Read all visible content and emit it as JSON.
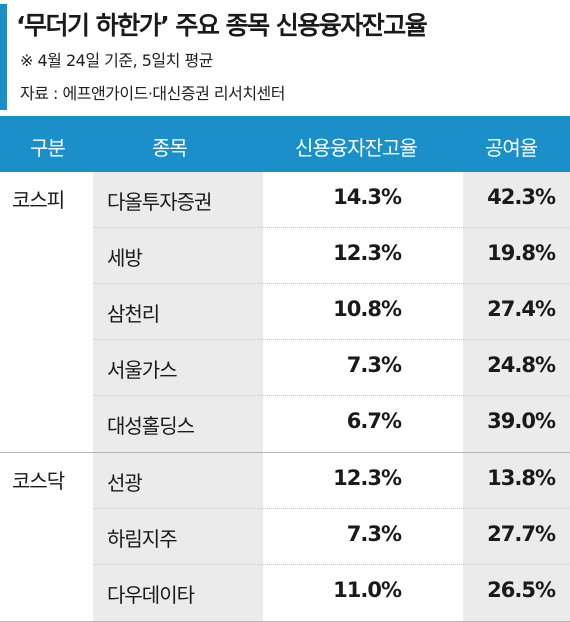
{
  "colors": {
    "accent": "#1a8fc9",
    "header_bg": "#1a8fc9",
    "shade": "#ebebeb",
    "text": "#1a1a1a"
  },
  "title": "‘무더기 하한가’ 주요 종목 신용융자잔고율",
  "note_basis": "※ 4월 24일 기준, 5일치 평균",
  "note_source": "자료 : 에프앤가이드·대신증권 리서치센터",
  "chart_data": {
    "type": "table",
    "columns": [
      "구분",
      "종목",
      "신용융자잔고율",
      "공여율"
    ],
    "groups": [
      {
        "label": "코스피",
        "rows": [
          {
            "name": "다올투자증권",
            "credit_ratio": "14.3%",
            "supply_ratio": "42.3%"
          },
          {
            "name": "세방",
            "credit_ratio": "12.3%",
            "supply_ratio": "19.8%"
          },
          {
            "name": "삼천리",
            "credit_ratio": "10.8%",
            "supply_ratio": "27.4%"
          },
          {
            "name": "서울가스",
            "credit_ratio": "7.3%",
            "supply_ratio": "24.8%"
          },
          {
            "name": "대성홀딩스",
            "credit_ratio": "6.7%",
            "supply_ratio": "39.0%"
          }
        ]
      },
      {
        "label": "코스닥",
        "rows": [
          {
            "name": "선광",
            "credit_ratio": "12.3%",
            "supply_ratio": "13.8%"
          },
          {
            "name": "하림지주",
            "credit_ratio": "7.3%",
            "supply_ratio": "27.7%"
          },
          {
            "name": "다우데이타",
            "credit_ratio": "11.0%",
            "supply_ratio": "26.5%"
          }
        ]
      }
    ]
  }
}
